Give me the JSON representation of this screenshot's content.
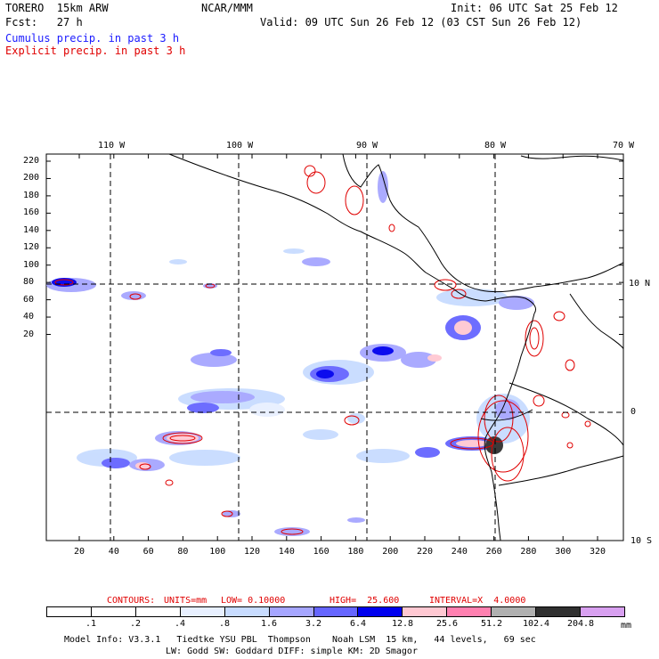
{
  "header": {
    "model": "TORERO  15km ARW",
    "center": "NCAR/MMM",
    "init": "Init: 06 UTC Sat 25 Feb 12",
    "fcst": "Fcst:   27 h",
    "valid": "Valid: 09 UTC Sun 26 Feb 12 (03 CST Sun 26 Feb 12)",
    "field1": "Cumulus precip. in past 3 h",
    "field2": "Explicit precip. in past 3 h"
  },
  "colors": {
    "field1": "#1a1aff",
    "field2": "#e00000",
    "grid": "#000000"
  },
  "map": {
    "lon_labels": [
      "110 W",
      "100 W",
      "90 W",
      "80 W",
      "70 W"
    ],
    "lat_labels": [
      "10 N",
      "0",
      "10 S"
    ],
    "y_ticks": [
      "220",
      "200",
      "180",
      "160",
      "140",
      "120",
      "100",
      "80",
      "60",
      "40",
      "20"
    ],
    "x_ticks": [
      "20",
      "40",
      "60",
      "80",
      "100",
      "120",
      "140",
      "160",
      "180",
      "200",
      "220",
      "240",
      "260",
      "280",
      "300",
      "320"
    ]
  },
  "contours_line": {
    "label": "CONTOURS:",
    "units": "UNITS=mm",
    "low": "LOW= 0.10000",
    "high": "HIGH=  25.600",
    "interval": "INTERVAL=X  4.0000"
  },
  "legend": {
    "labels": [
      ".1",
      ".2",
      ".4",
      ".8",
      "1.6",
      "3.2",
      "6.4",
      "12.8",
      "25.6",
      "51.2",
      "102.4",
      "204.8"
    ],
    "unit": "mm",
    "colors": [
      "#ffffff",
      "#ffffff",
      "#ffffff",
      "#e8f0ff",
      "#c8dcff",
      "#a6a6ff",
      "#6666ff",
      "#0000ee",
      "#ffc8d2",
      "#ff80b0",
      "#b0b0b0",
      "#303030",
      "#d8a0f0"
    ]
  },
  "footer": {
    "line1": "Model Info: V3.3.1   Tiedtke YSU PBL  Thompson    Noah LSM  15 km,   44 levels,   69 sec",
    "line2": "LW: Godd SW: Goddard DIFF: simple KM: 2D Smagor"
  }
}
